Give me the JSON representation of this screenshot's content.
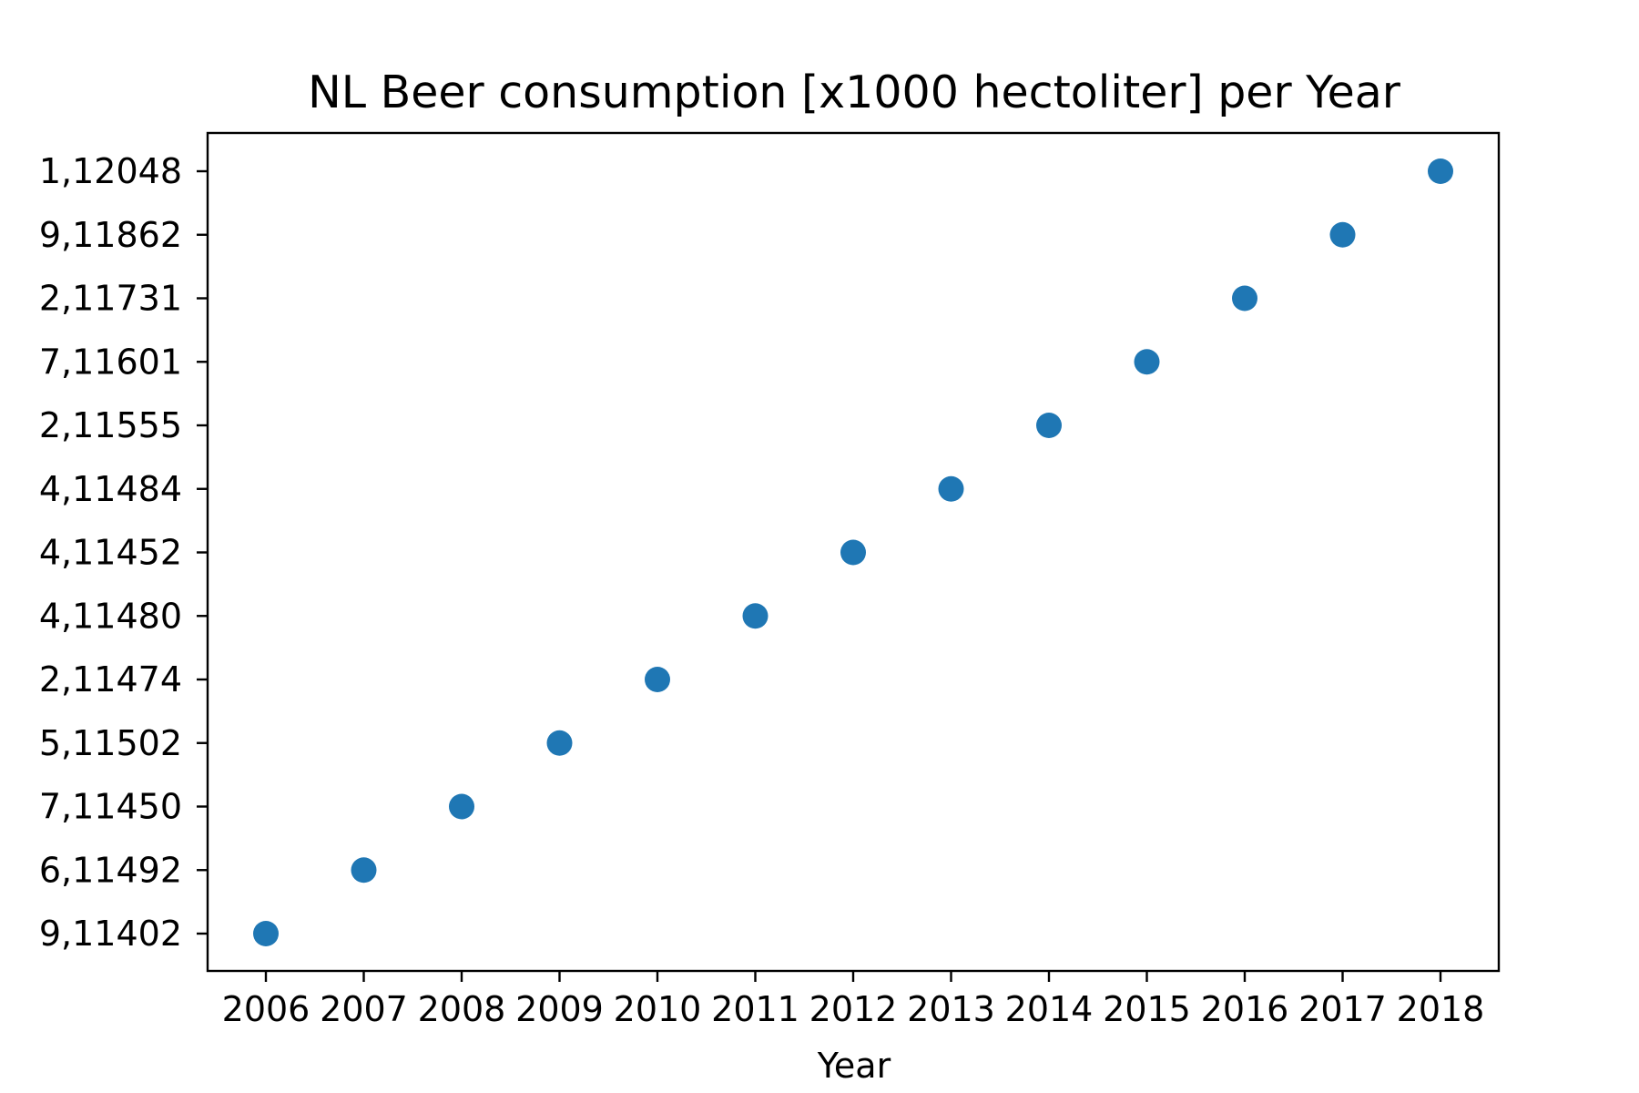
{
  "chart_data": {
    "type": "scatter",
    "title": "NL Beer consumption [x1000 hectoliter] per Year",
    "xlabel": "Year",
    "ylabel": "",
    "x": [
      "2006",
      "2007",
      "2008",
      "2009",
      "2010",
      "2011",
      "2012",
      "2013",
      "2014",
      "2015",
      "2016",
      "2017",
      "2018"
    ],
    "y": [
      "9,11402",
      "6,11492",
      "7,11450",
      "5,11502",
      "2,11474",
      "4,11480",
      "4,11452",
      "4,11484",
      "2,11555",
      "7,11601",
      "2,11731",
      "9,11862",
      "1,12048"
    ],
    "y_axis_type": "categorical",
    "y_tick_labels": [
      "9,11402",
      "6,11492",
      "7,11450",
      "5,11502",
      "2,11474",
      "4,11480",
      "4,11452",
      "4,11484",
      "2,11555",
      "7,11601",
      "2,11731",
      "9,11862",
      "1,12048"
    ],
    "x_tick_labels": [
      "2006",
      "2007",
      "2008",
      "2009",
      "2010",
      "2011",
      "2012",
      "2013",
      "2014",
      "2015",
      "2016",
      "2017",
      "2018"
    ],
    "marker_color": "#1f77b4",
    "grid": false,
    "legend": "none"
  }
}
